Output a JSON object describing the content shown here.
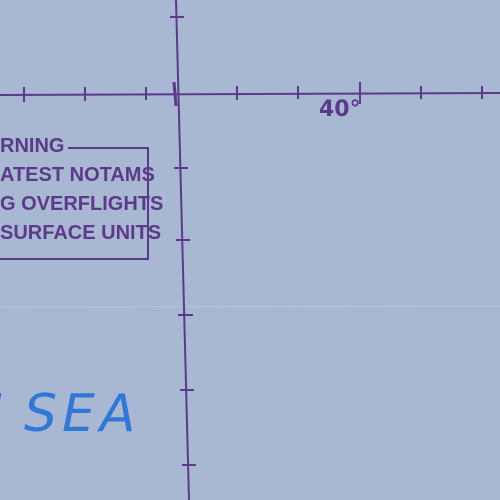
{
  "map": {
    "longitude_label": "40°",
    "warning": {
      "title": "RNING",
      "lines": [
        "ATEST NOTAMS",
        "G OVERFLIGHTS",
        "SURFACE UNITS"
      ]
    },
    "sea_label": "SEA",
    "sea_label_fragment": "N",
    "colors": {
      "water": "#a8b8d3",
      "graticule": "#5b3a8a",
      "sea_label": "#2f78d8"
    }
  }
}
